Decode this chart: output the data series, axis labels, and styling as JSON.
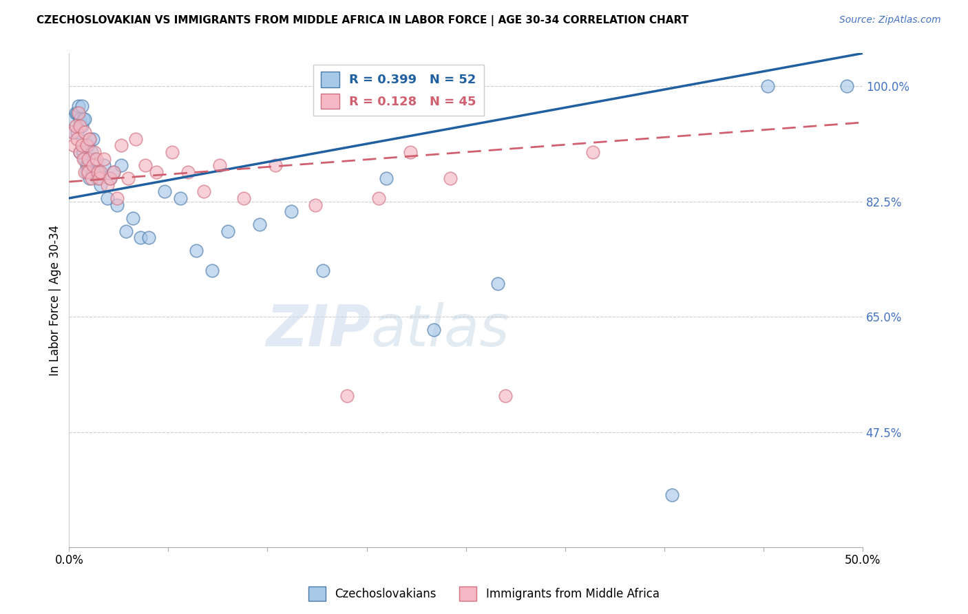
{
  "title": "CZECHOSLOVAKIAN VS IMMIGRANTS FROM MIDDLE AFRICA IN LABOR FORCE | AGE 30-34 CORRELATION CHART",
  "source": "Source: ZipAtlas.com",
  "ylabel": "In Labor Force | Age 30-34",
  "xlim": [
    0.0,
    0.5
  ],
  "ylim": [
    0.3,
    1.05
  ],
  "xtick_positions": [
    0.0,
    0.0625,
    0.125,
    0.1875,
    0.25,
    0.3125,
    0.375,
    0.4375,
    0.5
  ],
  "xticklabels_ends": [
    "0.0%",
    "50.0%"
  ],
  "yticks": [
    0.475,
    0.65,
    0.825,
    1.0
  ],
  "yticklabels": [
    "47.5%",
    "65.0%",
    "82.5%",
    "100.0%"
  ],
  "blue_fill": "#a8c8e8",
  "blue_edge": "#4878a8",
  "pink_fill": "#f5b8c4",
  "pink_edge": "#d07080",
  "blue_line_color": "#2060a0",
  "pink_line_color": "#d06070",
  "legend_label_blue": "Czechoslovakians",
  "legend_label_pink": "Immigrants from Middle Africa",
  "watermark_zip": "ZIP",
  "watermark_atlas": "atlas",
  "blue_x": [
    0.002,
    0.003,
    0.004,
    0.005,
    0.005,
    0.006,
    0.007,
    0.007,
    0.008,
    0.008,
    0.009,
    0.009,
    0.01,
    0.01,
    0.011,
    0.011,
    0.012,
    0.012,
    0.013,
    0.013,
    0.014,
    0.015,
    0.015,
    0.016,
    0.017,
    0.018,
    0.019,
    0.02,
    0.022,
    0.024,
    0.026,
    0.028,
    0.03,
    0.033,
    0.036,
    0.04,
    0.045,
    0.05,
    0.06,
    0.07,
    0.08,
    0.09,
    0.1,
    0.12,
    0.14,
    0.16,
    0.2,
    0.23,
    0.27,
    0.38,
    0.44,
    0.49
  ],
  "blue_y": [
    0.95,
    0.93,
    0.96,
    0.96,
    0.93,
    0.97,
    0.95,
    0.9,
    0.97,
    0.94,
    0.95,
    0.9,
    0.95,
    0.89,
    0.88,
    0.87,
    0.91,
    0.88,
    0.92,
    0.86,
    0.9,
    0.87,
    0.92,
    0.89,
    0.87,
    0.86,
    0.87,
    0.85,
    0.88,
    0.83,
    0.86,
    0.87,
    0.82,
    0.88,
    0.78,
    0.8,
    0.77,
    0.77,
    0.84,
    0.83,
    0.75,
    0.72,
    0.78,
    0.79,
    0.81,
    0.72,
    0.86,
    0.63,
    0.7,
    0.38,
    1.0,
    1.0
  ],
  "pink_x": [
    0.002,
    0.003,
    0.004,
    0.005,
    0.006,
    0.007,
    0.007,
    0.008,
    0.009,
    0.01,
    0.01,
    0.011,
    0.012,
    0.012,
    0.013,
    0.014,
    0.015,
    0.016,
    0.017,
    0.018,
    0.019,
    0.02,
    0.022,
    0.024,
    0.026,
    0.028,
    0.03,
    0.033,
    0.037,
    0.042,
    0.048,
    0.055,
    0.065,
    0.075,
    0.085,
    0.095,
    0.11,
    0.13,
    0.155,
    0.175,
    0.195,
    0.215,
    0.24,
    0.275,
    0.33
  ],
  "pink_y": [
    0.93,
    0.91,
    0.94,
    0.92,
    0.96,
    0.94,
    0.9,
    0.91,
    0.89,
    0.93,
    0.87,
    0.91,
    0.89,
    0.87,
    0.92,
    0.86,
    0.88,
    0.9,
    0.89,
    0.87,
    0.86,
    0.87,
    0.89,
    0.85,
    0.86,
    0.87,
    0.83,
    0.91,
    0.86,
    0.92,
    0.88,
    0.87,
    0.9,
    0.87,
    0.84,
    0.88,
    0.83,
    0.88,
    0.82,
    0.53,
    0.83,
    0.9,
    0.86,
    0.53,
    0.9
  ]
}
